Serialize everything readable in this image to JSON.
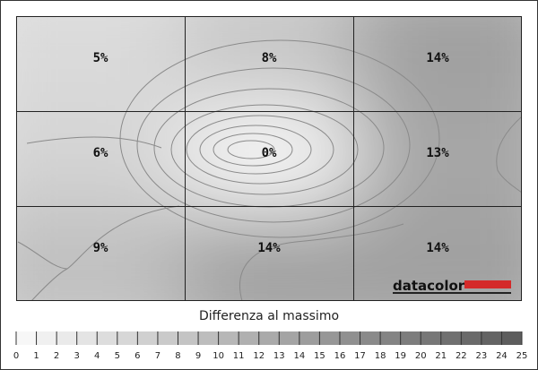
{
  "chart_data": {
    "type": "heatmap",
    "values": [
      [
        5,
        8,
        14
      ],
      [
        6,
        0,
        13
      ],
      [
        9,
        14,
        14
      ]
    ],
    "value_labels": [
      [
        "5%",
        "8%",
        "14%"
      ],
      [
        "6%",
        "0%",
        "13%"
      ],
      [
        "9%",
        "14%",
        "14%"
      ]
    ],
    "colorbar_label": "Differenza al massimo",
    "colorbar_lim": [
      0,
      25
    ],
    "colorbar_ticks": [
      0,
      1,
      2,
      3,
      4,
      5,
      6,
      7,
      8,
      9,
      10,
      11,
      12,
      13,
      14,
      15,
      16,
      17,
      18,
      19,
      20,
      21,
      22,
      23,
      24,
      25
    ],
    "logo": "datacolor"
  }
}
